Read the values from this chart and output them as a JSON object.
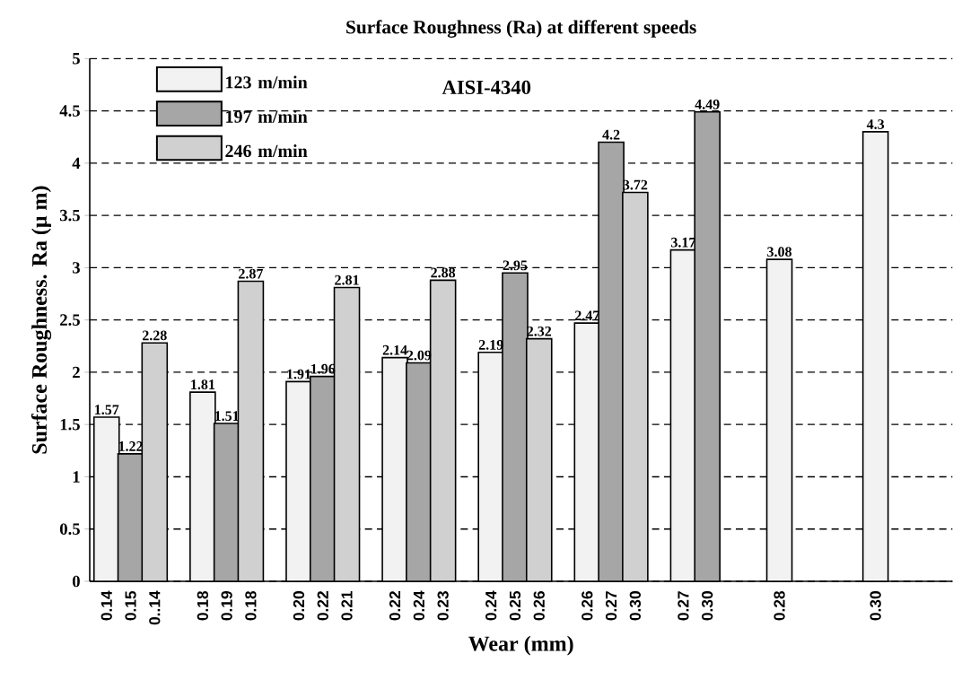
{
  "chart_data": {
    "type": "bar",
    "title": "Surface Roughness (Ra) at different speeds",
    "xlabel": "Wear (mm)",
    "ylabel": "Surface Roughness. Ra (μ m)",
    "annotations": [
      "AISI-4340"
    ],
    "categories": [
      "0.14",
      "0.15",
      "0..14",
      null,
      "0.18",
      "0.19",
      "0.18",
      null,
      "0.20",
      "0.22",
      "0.21",
      null,
      "0.22",
      "0.24",
      "0.23",
      null,
      "0.24",
      "0.25",
      "0.26",
      null,
      "0.26",
      "0.27",
      "0.30",
      null,
      "0.27",
      "0.30",
      null,
      null,
      "0.28",
      null,
      null,
      null,
      "0.30"
    ],
    "series": [
      {
        "name": "123 m/min",
        "color": "#f2f2f2",
        "values": [
          1.57,
          null,
          null,
          null,
          1.81,
          null,
          null,
          null,
          1.91,
          null,
          null,
          null,
          2.14,
          null,
          null,
          null,
          2.19,
          null,
          null,
          null,
          2.47,
          null,
          null,
          null,
          3.17,
          null,
          null,
          null,
          3.08,
          null,
          null,
          null,
          4.3
        ]
      },
      {
        "name": "197 m/min",
        "color": "#a6a6a6",
        "values": [
          null,
          1.22,
          null,
          null,
          null,
          1.51,
          null,
          null,
          null,
          1.96,
          null,
          null,
          null,
          2.09,
          null,
          null,
          null,
          2.95,
          null,
          null,
          null,
          4.2,
          null,
          null,
          null,
          4.49,
          null,
          null,
          null,
          null,
          null,
          null,
          null
        ]
      },
      {
        "name": "246 m/min",
        "color": "#d0d0d0",
        "values": [
          null,
          null,
          2.28,
          null,
          null,
          null,
          2.87,
          null,
          null,
          null,
          2.81,
          null,
          null,
          null,
          2.88,
          null,
          null,
          null,
          2.32,
          null,
          null,
          null,
          3.72,
          null,
          null,
          null,
          null,
          null,
          null,
          null,
          null,
          null,
          null
        ]
      }
    ],
    "ylim": [
      0,
      5
    ],
    "yticks": [
      0,
      0.5,
      1,
      1.5,
      2,
      2.5,
      3,
      3.5,
      4,
      4.5,
      5
    ],
    "grid": "y",
    "legend": "top left",
    "data_labels": true
  }
}
